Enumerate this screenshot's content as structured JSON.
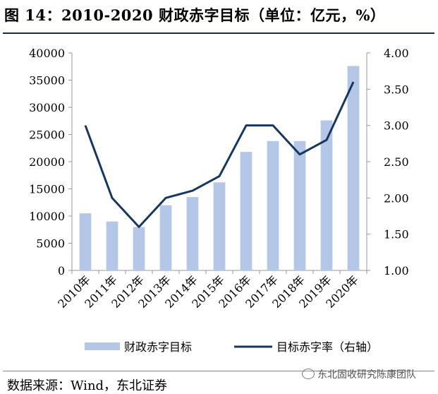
{
  "title": "图 14：2010-2020 财政赤字目标（单位：亿元，%）",
  "source": "数据来源：Wind，东北证券",
  "watermark": {
    "icon": "wechat-icon",
    "text": "东北固收研究陈康团队"
  },
  "chart_data": {
    "type": "bar",
    "categories": [
      "2010年",
      "2011年",
      "2012年",
      "2013年",
      "2014年",
      "2015年",
      "2016年",
      "2017年",
      "2018年",
      "2019年",
      "2020年"
    ],
    "series": [
      {
        "name": "财政赤字目标",
        "type": "bar",
        "axis": "left",
        "color": "#b4c7e7",
        "values": [
          10500,
          9000,
          8000,
          12000,
          13500,
          16200,
          21800,
          23800,
          23800,
          27600,
          37600
        ]
      },
      {
        "name": "目标赤字率（右轴）",
        "type": "line",
        "axis": "right",
        "color": "#17375e",
        "values": [
          3.0,
          2.0,
          1.6,
          2.0,
          2.1,
          2.3,
          3.0,
          3.0,
          2.6,
          2.8,
          3.6
        ]
      }
    ],
    "y_left": {
      "min": 0,
      "max": 40000,
      "ticks": [
        "0",
        "5000",
        "10000",
        "15000",
        "20000",
        "25000",
        "30000",
        "35000",
        "40000"
      ]
    },
    "y_right": {
      "min": 1.0,
      "max": 4.0,
      "ticks": [
        "1.00",
        "1.50",
        "2.00",
        "2.50",
        "3.00",
        "3.50",
        "4.00"
      ]
    },
    "grid": false,
    "legend_position": "bottom"
  }
}
